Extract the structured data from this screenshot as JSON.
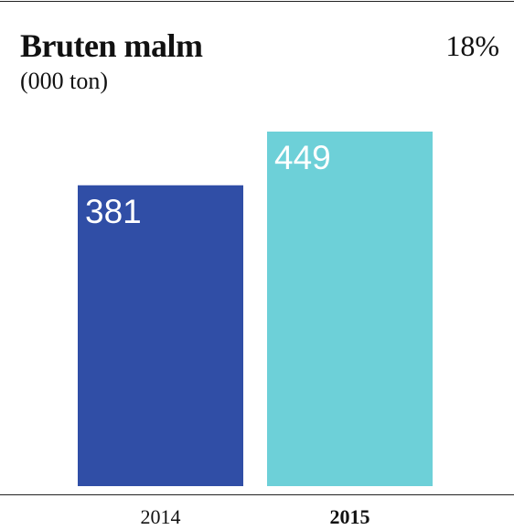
{
  "header": {
    "title": "Bruten malm",
    "subtitle": "(000 ton)",
    "change": "18%"
  },
  "chart_data": {
    "type": "bar",
    "categories": [
      "2014",
      "2015"
    ],
    "values": [
      381,
      449
    ],
    "data_labels": [
      "381",
      "449"
    ],
    "colors": [
      "#304EA6",
      "#6DD0D8"
    ],
    "highlighted_category": "2015",
    "title": "Bruten malm",
    "subtitle": "(000 ton)",
    "ylim": [
      0,
      449
    ],
    "grid": false,
    "legend": "none"
  }
}
